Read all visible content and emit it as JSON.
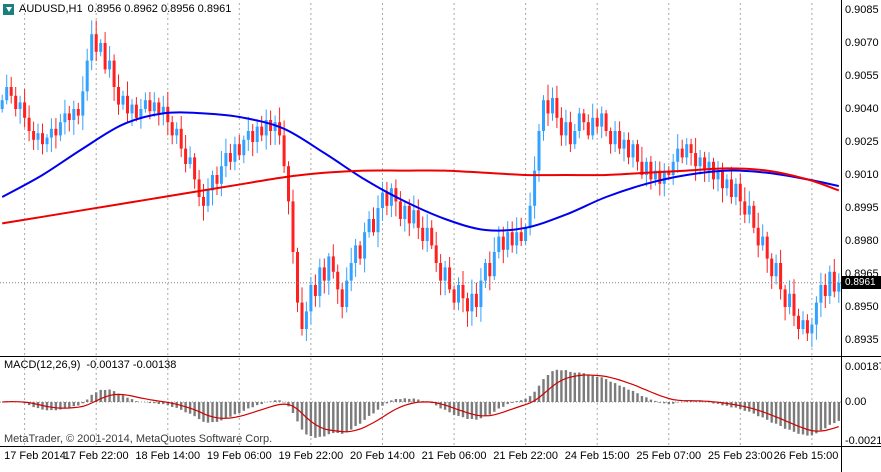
{
  "header": {
    "symbol_period": "AUDUSD,H1",
    "quote": "0.8956 0.8962 0.8956 0.8961"
  },
  "price_axis": {
    "ticks": [
      "0.9085",
      "0.9070",
      "0.9055",
      "0.9040",
      "0.9025",
      "0.9010",
      "0.8995",
      "0.8980",
      "0.8965",
      "0.8950",
      "0.8935"
    ],
    "current_price": "0.8961"
  },
  "time_axis": {
    "ticks": [
      {
        "label": "17 Feb 2014",
        "bar": 5
      },
      {
        "label": "17 Feb 22:00",
        "bar": 21
      },
      {
        "label": "18 Feb 14:00",
        "bar": 37
      },
      {
        "label": "19 Feb 06:00",
        "bar": 53
      },
      {
        "label": "19 Feb 22:00",
        "bar": 69
      },
      {
        "label": "20 Feb 14:00",
        "bar": 85
      },
      {
        "label": "21 Feb 06:00",
        "bar": 101
      },
      {
        "label": "21 Feb 22:00",
        "bar": 117
      },
      {
        "label": "24 Feb 15:00",
        "bar": 133
      },
      {
        "label": "25 Feb 07:00",
        "bar": 149
      },
      {
        "label": "25 Feb 23:00",
        "bar": 165
      },
      {
        "label": "26 Feb 15:00",
        "bar": 181
      }
    ]
  },
  "macd_panel": {
    "name": "MACD(12,26,9)",
    "values": "-0.00137 -0.00138",
    "ticks": [
      "0.00187",
      "0.00",
      "-0.00211"
    ]
  },
  "footer": {
    "copyright": "MetaTrader, © 2001-2014, MetaQuotes Software Corp."
  },
  "colors": {
    "bull": "#33a1ff",
    "bear": "#ff2020",
    "ma_blue": "#0000ee",
    "ma_red": "#ee0000",
    "histogram": "#7b7b7b",
    "signal": "#d00000",
    "grid": "#a8a8a8",
    "price_line": "#808080",
    "separator": "#000000"
  },
  "chart_data": {
    "type": "candlestick",
    "symbol": "AUDUSD",
    "timeframe": "H1",
    "quote_ohlc": {
      "open": 0.8956,
      "high": 0.8962,
      "low": 0.8956,
      "close": 0.8961
    },
    "y_axis": {
      "ticks": [
        0.9085,
        0.907,
        0.9055,
        0.904,
        0.9025,
        0.901,
        0.8995,
        0.898,
        0.8965,
        0.895,
        0.8935
      ],
      "step": 0.0015
    },
    "candles": {
      "first_open": 0.904,
      "closes": [
        0.9044,
        0.905,
        0.9046,
        0.904,
        0.9043,
        0.9036,
        0.903,
        0.9026,
        0.9029,
        0.9024,
        0.9027,
        0.9031,
        0.9028,
        0.9034,
        0.9038,
        0.9035,
        0.904,
        0.9037,
        0.9048,
        0.9062,
        0.9074,
        0.9066,
        0.907,
        0.9058,
        0.9062,
        0.905,
        0.9042,
        0.9046,
        0.9038,
        0.9042,
        0.9036,
        0.904,
        0.9044,
        0.9039,
        0.9043,
        0.9038,
        0.9041,
        0.9034,
        0.9028,
        0.9031,
        0.9022,
        0.9015,
        0.9018,
        0.9008,
        0.9,
        0.8996,
        0.9003,
        0.901,
        0.9006,
        0.9014,
        0.902,
        0.9016,
        0.9024,
        0.9019,
        0.9026,
        0.903,
        0.9025,
        0.9032,
        0.9028,
        0.9035,
        0.903,
        0.9034,
        0.9028,
        0.9014,
        0.8998,
        0.8975,
        0.8952,
        0.894,
        0.8948,
        0.896,
        0.8955,
        0.8968,
        0.8962,
        0.8973,
        0.8966,
        0.8958,
        0.895,
        0.8962,
        0.897,
        0.8978,
        0.8972,
        0.8984,
        0.899,
        0.8984,
        0.8995,
        0.9002,
        0.8996,
        0.9004,
        0.8998,
        0.899,
        0.8996,
        0.8988,
        0.8994,
        0.8986,
        0.898,
        0.8986,
        0.8978,
        0.897,
        0.8962,
        0.8968,
        0.8958,
        0.8952,
        0.896,
        0.8954,
        0.8948,
        0.8956,
        0.895,
        0.8962,
        0.897,
        0.8964,
        0.8975,
        0.8982,
        0.8976,
        0.8984,
        0.8978,
        0.8984,
        0.898,
        0.8986,
        0.8996,
        0.9012,
        0.903,
        0.9044,
        0.9038,
        0.9045,
        0.9036,
        0.9028,
        0.9034,
        0.9024,
        0.903,
        0.9038,
        0.9034,
        0.9028,
        0.9036,
        0.9032,
        0.9038,
        0.903,
        0.9024,
        0.903,
        0.9022,
        0.9026,
        0.9018,
        0.9024,
        0.9016,
        0.901,
        0.9016,
        0.9008,
        0.9012,
        0.9006,
        0.9012,
        0.901,
        0.9016,
        0.9022,
        0.9018,
        0.9024,
        0.902,
        0.9014,
        0.9018,
        0.9012,
        0.9016,
        0.9008,
        0.9012,
        0.9004,
        0.9008,
        0.9,
        0.9006,
        0.8998,
        0.8992,
        0.8996,
        0.8986,
        0.8978,
        0.8982,
        0.8972,
        0.8964,
        0.897,
        0.8958,
        0.895,
        0.8956,
        0.8946,
        0.894,
        0.8944,
        0.8938,
        0.8942,
        0.8952,
        0.896,
        0.8955,
        0.8966,
        0.8957,
        0.8961
      ]
    },
    "overlays": {
      "ma_blue_points": [
        [
          0,
          0.9
        ],
        [
          9,
          0.901
        ],
        [
          18,
          0.9022
        ],
        [
          27,
          0.9033
        ],
        [
          36,
          0.9038
        ],
        [
          45,
          0.9038
        ],
        [
          54,
          0.9036
        ],
        [
          63,
          0.9031
        ],
        [
          72,
          0.902
        ],
        [
          81,
          0.9008
        ],
        [
          90,
          0.8998
        ],
        [
          99,
          0.899
        ],
        [
          108,
          0.8985
        ],
        [
          117,
          0.8986
        ],
        [
          126,
          0.8992
        ],
        [
          135,
          0.9
        ],
        [
          144,
          0.9006
        ],
        [
          153,
          0.901
        ],
        [
          162,
          0.9012
        ],
        [
          171,
          0.9011
        ],
        [
          180,
          0.9008
        ],
        [
          187,
          0.9005
        ]
      ],
      "ma_red_points": [
        [
          0,
          0.8988
        ],
        [
          9,
          0.8991
        ],
        [
          18,
          0.8994
        ],
        [
          27,
          0.8997
        ],
        [
          36,
          0.9
        ],
        [
          45,
          0.9003
        ],
        [
          54,
          0.9006
        ],
        [
          63,
          0.9009
        ],
        [
          72,
          0.9011
        ],
        [
          81,
          0.9012
        ],
        [
          90,
          0.9012
        ],
        [
          99,
          0.9012
        ],
        [
          108,
          0.9011
        ],
        [
          117,
          0.901
        ],
        [
          126,
          0.901
        ],
        [
          135,
          0.901
        ],
        [
          144,
          0.9011
        ],
        [
          153,
          0.9012
        ],
        [
          162,
          0.9013
        ],
        [
          171,
          0.9012
        ],
        [
          180,
          0.9008
        ],
        [
          187,
          0.9003
        ]
      ]
    },
    "indicator": {
      "name": "MACD",
      "params": [
        12,
        26,
        9
      ],
      "current_macd": -0.00137,
      "current_signal": -0.00138,
      "scale_ticks": [
        0.00187,
        0,
        -0.00211
      ]
    }
  }
}
